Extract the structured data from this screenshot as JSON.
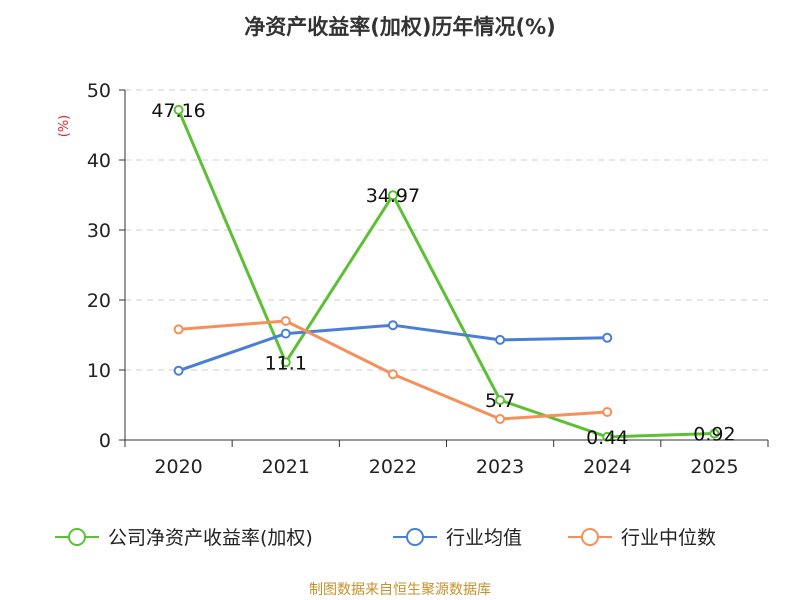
{
  "chart_data": {
    "type": "line",
    "title": "净资产收益率(加权)历年情况(%)",
    "ylabel": "(%)",
    "xlabel": "",
    "categories": [
      "2020",
      "2021",
      "2022",
      "2023",
      "2024",
      "2025"
    ],
    "ylim": [
      0,
      50
    ],
    "yticks": [
      "0",
      "10",
      "20",
      "30",
      "40",
      "50"
    ],
    "grid": true,
    "legend_position": "bottom",
    "series": [
      {
        "name": "公司净资产收益率(加权)",
        "color": "#5cc034",
        "values": [
          47.16,
          11.1,
          34.97,
          5.7,
          0.44,
          0.92
        ],
        "labels": [
          "47.16",
          "11.1",
          "34.97",
          "5.7",
          "0.44",
          "0.92"
        ]
      },
      {
        "name": "行业均值",
        "color": "#4a7fd6",
        "values": [
          9.9,
          15.2,
          16.4,
          14.3,
          14.6,
          null
        ]
      },
      {
        "name": "行业中位数",
        "color": "#f5905a",
        "values": [
          15.8,
          17.0,
          9.4,
          3.0,
          4.0,
          null
        ]
      }
    ]
  },
  "source_text": "制图数据来自恒生聚源数据库"
}
